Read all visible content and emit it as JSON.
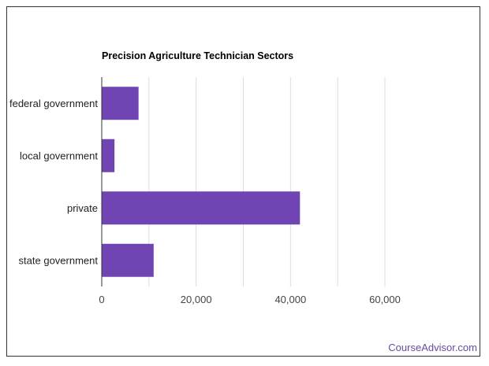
{
  "chart_data": {
    "type": "bar",
    "orientation": "horizontal",
    "title": "Precision Agriculture Technician Sectors",
    "categories": [
      "federal government",
      "local government",
      "private",
      "state government"
    ],
    "values": [
      7800,
      2700,
      42000,
      11000
    ],
    "xlim": [
      0,
      70000
    ],
    "x_ticks": [
      0,
      20000,
      40000,
      60000
    ],
    "x_tick_labels": [
      "0",
      "20,000",
      "40,000",
      "60,000"
    ],
    "grid": true,
    "legend": "none",
    "bar_color": "#7044b3"
  },
  "footer": {
    "brand": "CourseAdvisor.com"
  }
}
